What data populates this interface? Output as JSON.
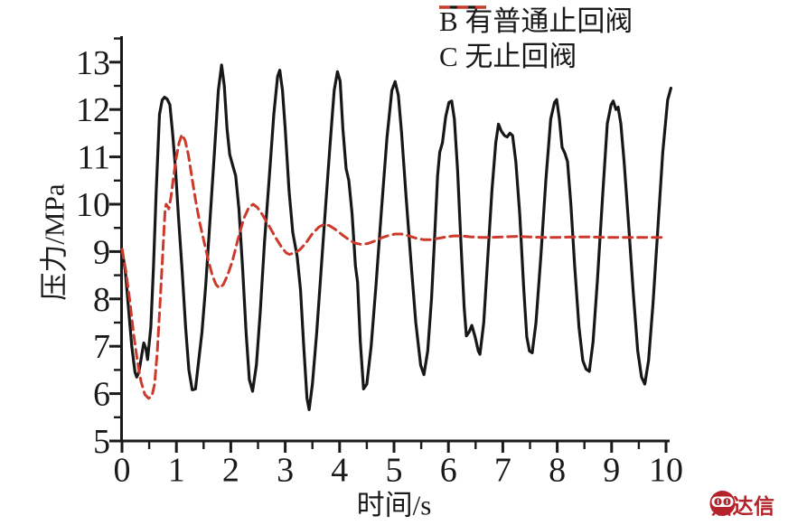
{
  "figure": {
    "background": "#ffffff"
  },
  "legend": {
    "items": [
      {
        "label": "B 有普通止回阀",
        "series": "B",
        "line_style": "solid"
      },
      {
        "label": "C 无止回阀",
        "series": "C",
        "line_style": "dashed"
      }
    ]
  },
  "watermark": {
    "text": "鼎达信",
    "color": "#b5232a",
    "icon": "dingdaxin-seal-icon"
  },
  "chart_data": {
    "type": "line",
    "title": "",
    "xlabel": "时间/s",
    "ylabel": "压力/MPa",
    "xlim": [
      0,
      10
    ],
    "ylim": [
      5,
      13
    ],
    "x_ticks": [
      0,
      1,
      2,
      3,
      4,
      5,
      6,
      7,
      8,
      9,
      10
    ],
    "y_ticks": [
      5,
      6,
      7,
      8,
      9,
      10,
      11,
      12,
      13
    ],
    "minor_tick_step": 0.5,
    "grid": false,
    "legend_position": "top-right",
    "axis_color": "#1a1a1a",
    "series": [
      {
        "name": "B 有普通止回阀",
        "color": "#171717",
        "style": "solid",
        "width": 3.2,
        "points": [
          [
            0,
            9.05
          ],
          [
            0.06,
            8.6
          ],
          [
            0.12,
            7.8
          ],
          [
            0.18,
            7.0
          ],
          [
            0.24,
            6.45
          ],
          [
            0.27,
            6.35
          ],
          [
            0.31,
            6.45
          ],
          [
            0.36,
            6.8
          ],
          [
            0.4,
            7.07
          ],
          [
            0.44,
            6.95
          ],
          [
            0.47,
            6.72
          ],
          [
            0.53,
            7.4
          ],
          [
            0.58,
            8.7
          ],
          [
            0.63,
            10.3
          ],
          [
            0.69,
            11.9
          ],
          [
            0.74,
            12.2
          ],
          [
            0.78,
            12.26
          ],
          [
            0.83,
            12.22
          ],
          [
            0.88,
            12.1
          ],
          [
            0.93,
            11.5
          ],
          [
            0.98,
            10.8
          ],
          [
            1.04,
            9.7
          ],
          [
            1.1,
            8.7
          ],
          [
            1.17,
            7.4
          ],
          [
            1.23,
            6.5
          ],
          [
            1.29,
            6.08
          ],
          [
            1.35,
            6.1
          ],
          [
            1.42,
            6.8
          ],
          [
            1.47,
            7.3
          ],
          [
            1.54,
            8.3
          ],
          [
            1.62,
            9.7
          ],
          [
            1.7,
            11.1
          ],
          [
            1.77,
            12.4
          ],
          [
            1.83,
            12.94
          ],
          [
            1.88,
            12.5
          ],
          [
            1.93,
            11.6
          ],
          [
            1.98,
            11.05
          ],
          [
            2.04,
            10.8
          ],
          [
            2.09,
            10.6
          ],
          [
            2.15,
            9.9
          ],
          [
            2.22,
            8.6
          ],
          [
            2.28,
            7.3
          ],
          [
            2.34,
            6.3
          ],
          [
            2.4,
            6.05
          ],
          [
            2.47,
            6.6
          ],
          [
            2.54,
            7.7
          ],
          [
            2.62,
            9.2
          ],
          [
            2.71,
            10.6
          ],
          [
            2.79,
            11.9
          ],
          [
            2.86,
            12.7
          ],
          [
            2.9,
            12.83
          ],
          [
            2.95,
            12.4
          ],
          [
            3.0,
            11.6
          ],
          [
            3.07,
            10.3
          ],
          [
            3.14,
            9.4
          ],
          [
            3.22,
            8.9
          ],
          [
            3.28,
            8.2
          ],
          [
            3.34,
            7.0
          ],
          [
            3.4,
            5.9
          ],
          [
            3.44,
            5.66
          ],
          [
            3.5,
            6.2
          ],
          [
            3.58,
            7.3
          ],
          [
            3.66,
            8.6
          ],
          [
            3.74,
            9.9
          ],
          [
            3.82,
            11.2
          ],
          [
            3.9,
            12.4
          ],
          [
            3.96,
            12.8
          ],
          [
            4.01,
            12.6
          ],
          [
            4.06,
            11.6
          ],
          [
            4.12,
            10.75
          ],
          [
            4.17,
            10.5
          ],
          [
            4.23,
            9.8
          ],
          [
            4.29,
            8.7
          ],
          [
            4.33,
            8.35
          ],
          [
            4.38,
            7.1
          ],
          [
            4.44,
            6.1
          ],
          [
            4.5,
            6.2
          ],
          [
            4.58,
            7.0
          ],
          [
            4.67,
            8.3
          ],
          [
            4.77,
            9.9
          ],
          [
            4.87,
            11.4
          ],
          [
            4.96,
            12.4
          ],
          [
            5.02,
            12.59
          ],
          [
            5.08,
            12.3
          ],
          [
            5.14,
            11.5
          ],
          [
            5.22,
            10.2
          ],
          [
            5.31,
            8.8
          ],
          [
            5.4,
            7.5
          ],
          [
            5.49,
            6.6
          ],
          [
            5.55,
            6.4
          ],
          [
            5.62,
            6.9
          ],
          [
            5.69,
            8.0
          ],
          [
            5.75,
            9.4
          ],
          [
            5.8,
            10.6
          ],
          [
            5.84,
            11.1
          ],
          [
            5.89,
            11.3
          ],
          [
            5.95,
            11.85
          ],
          [
            6.01,
            12.15
          ],
          [
            6.06,
            12.18
          ],
          [
            6.11,
            11.8
          ],
          [
            6.17,
            10.7
          ],
          [
            6.23,
            9.2
          ],
          [
            6.29,
            7.8
          ],
          [
            6.33,
            7.22
          ],
          [
            6.38,
            7.3
          ],
          [
            6.43,
            7.44
          ],
          [
            6.49,
            7.2
          ],
          [
            6.55,
            6.9
          ],
          [
            6.58,
            6.83
          ],
          [
            6.65,
            7.5
          ],
          [
            6.72,
            8.8
          ],
          [
            6.8,
            10.3
          ],
          [
            6.87,
            11.3
          ],
          [
            6.92,
            11.69
          ],
          [
            6.97,
            11.55
          ],
          [
            7.03,
            11.45
          ],
          [
            7.08,
            11.42
          ],
          [
            7.13,
            11.5
          ],
          [
            7.18,
            11.45
          ],
          [
            7.24,
            10.9
          ],
          [
            7.31,
            9.8
          ],
          [
            7.38,
            8.3
          ],
          [
            7.44,
            7.2
          ],
          [
            7.49,
            6.9
          ],
          [
            7.54,
            6.86
          ],
          [
            7.61,
            7.5
          ],
          [
            7.7,
            8.9
          ],
          [
            7.79,
            10.5
          ],
          [
            7.88,
            11.8
          ],
          [
            7.95,
            12.15
          ],
          [
            7.99,
            12.21
          ],
          [
            8.04,
            11.8
          ],
          [
            8.09,
            11.2
          ],
          [
            8.14,
            11.08
          ],
          [
            8.19,
            10.9
          ],
          [
            8.25,
            10.0
          ],
          [
            8.32,
            8.7
          ],
          [
            8.4,
            7.4
          ],
          [
            8.47,
            6.7
          ],
          [
            8.53,
            6.52
          ],
          [
            8.59,
            6.47
          ],
          [
            8.66,
            7.1
          ],
          [
            8.74,
            8.4
          ],
          [
            8.83,
            10.1
          ],
          [
            8.92,
            11.7
          ],
          [
            8.99,
            12.1
          ],
          [
            9.03,
            12.18
          ],
          [
            9.08,
            12.0
          ],
          [
            9.12,
            12.05
          ],
          [
            9.17,
            11.7
          ],
          [
            9.23,
            10.9
          ],
          [
            9.31,
            9.6
          ],
          [
            9.4,
            8.1
          ],
          [
            9.48,
            6.9
          ],
          [
            9.55,
            6.35
          ],
          [
            9.61,
            6.2
          ],
          [
            9.68,
            6.7
          ],
          [
            9.76,
            7.9
          ],
          [
            9.85,
            9.5
          ],
          [
            9.94,
            11.1
          ],
          [
            10.03,
            12.2
          ],
          [
            10.09,
            12.45
          ]
        ]
      },
      {
        "name": "C 无止回阀",
        "color": "#cc3a2b",
        "style": "dashed",
        "width": 3,
        "dash": "10 6",
        "points": [
          [
            0,
            9.05
          ],
          [
            0.07,
            8.6
          ],
          [
            0.14,
            8.0
          ],
          [
            0.21,
            7.3
          ],
          [
            0.28,
            6.7
          ],
          [
            0.35,
            6.25
          ],
          [
            0.42,
            5.98
          ],
          [
            0.49,
            5.9
          ],
          [
            0.55,
            5.95
          ],
          [
            0.6,
            6.2
          ],
          [
            0.65,
            6.9
          ],
          [
            0.7,
            7.9
          ],
          [
            0.75,
            9.0
          ],
          [
            0.79,
            9.85
          ],
          [
            0.81,
            10.0
          ],
          [
            0.84,
            9.95
          ],
          [
            0.86,
            9.9
          ],
          [
            0.9,
            10.15
          ],
          [
            0.95,
            10.6
          ],
          [
            1.0,
            11.0
          ],
          [
            1.05,
            11.3
          ],
          [
            1.1,
            11.47
          ],
          [
            1.16,
            11.35
          ],
          [
            1.22,
            11.05
          ],
          [
            1.28,
            10.6
          ],
          [
            1.35,
            10.1
          ],
          [
            1.43,
            9.6
          ],
          [
            1.5,
            9.25
          ],
          [
            1.58,
            8.85
          ],
          [
            1.66,
            8.5
          ],
          [
            1.73,
            8.3
          ],
          [
            1.79,
            8.23
          ],
          [
            1.86,
            8.3
          ],
          [
            1.94,
            8.5
          ],
          [
            2.03,
            8.8
          ],
          [
            2.13,
            9.25
          ],
          [
            2.24,
            9.7
          ],
          [
            2.33,
            9.93
          ],
          [
            2.41,
            10.0
          ],
          [
            2.49,
            9.93
          ],
          [
            2.58,
            9.78
          ],
          [
            2.7,
            9.55
          ],
          [
            2.82,
            9.3
          ],
          [
            2.93,
            9.1
          ],
          [
            3.02,
            8.97
          ],
          [
            3.08,
            8.94
          ],
          [
            3.16,
            8.97
          ],
          [
            3.26,
            9.03
          ],
          [
            3.38,
            9.18
          ],
          [
            3.5,
            9.38
          ],
          [
            3.62,
            9.52
          ],
          [
            3.71,
            9.57
          ],
          [
            3.81,
            9.55
          ],
          [
            3.92,
            9.47
          ],
          [
            4.04,
            9.36
          ],
          [
            4.16,
            9.26
          ],
          [
            4.28,
            9.18
          ],
          [
            4.4,
            9.15
          ],
          [
            4.52,
            9.17
          ],
          [
            4.64,
            9.22
          ],
          [
            4.77,
            9.29
          ],
          [
            4.9,
            9.34
          ],
          [
            5.02,
            9.37
          ],
          [
            5.14,
            9.37
          ],
          [
            5.27,
            9.33
          ],
          [
            5.41,
            9.28
          ],
          [
            5.55,
            9.25
          ],
          [
            5.68,
            9.25
          ],
          [
            5.82,
            9.28
          ],
          [
            5.96,
            9.31
          ],
          [
            6.1,
            9.33
          ],
          [
            6.25,
            9.33
          ],
          [
            6.42,
            9.31
          ],
          [
            6.6,
            9.3
          ],
          [
            6.8,
            9.3
          ],
          [
            7.0,
            9.31
          ],
          [
            7.25,
            9.32
          ],
          [
            7.5,
            9.31
          ],
          [
            7.75,
            9.3
          ],
          [
            8.0,
            9.3
          ],
          [
            8.3,
            9.31
          ],
          [
            8.6,
            9.31
          ],
          [
            8.9,
            9.3
          ],
          [
            9.2,
            9.3
          ],
          [
            9.5,
            9.3
          ],
          [
            9.75,
            9.3
          ],
          [
            10.0,
            9.3
          ]
        ]
      }
    ]
  }
}
